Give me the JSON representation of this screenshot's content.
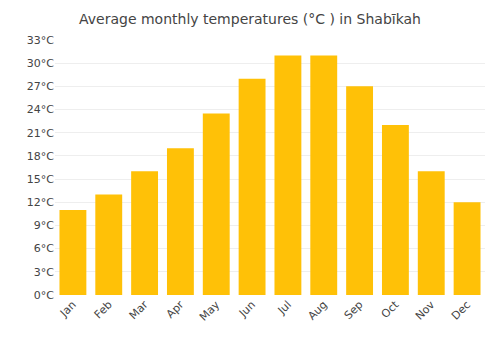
{
  "chart_data": {
    "type": "bar",
    "title": "Average monthly temperatures (°C ) in Shabīkah",
    "categories": [
      "Jan",
      "Feb",
      "Mar",
      "Apr",
      "May",
      "Jun",
      "Jul",
      "Aug",
      "Sep",
      "Oct",
      "Nov",
      "Dec"
    ],
    "values": [
      11,
      13,
      16,
      19,
      23.5,
      28,
      31,
      31,
      27,
      22,
      16,
      12
    ],
    "color": "#FFC107",
    "ylim": [
      0,
      33
    ],
    "yticks": [
      {
        "value": 0,
        "label": "0°C"
      },
      {
        "value": 3,
        "label": "3°C"
      },
      {
        "value": 6,
        "label": "6°C"
      },
      {
        "value": 9,
        "label": "9°C"
      },
      {
        "value": 12,
        "label": "12°C"
      },
      {
        "value": 15,
        "label": "15°C"
      },
      {
        "value": 18,
        "label": "18°C"
      },
      {
        "value": 21,
        "label": "21°C"
      },
      {
        "value": 24,
        "label": "24°C"
      },
      {
        "value": 27,
        "label": "27°C"
      },
      {
        "value": 30,
        "label": "30°C"
      },
      {
        "value": 33,
        "label": "33°C"
      }
    ],
    "grid": true
  }
}
